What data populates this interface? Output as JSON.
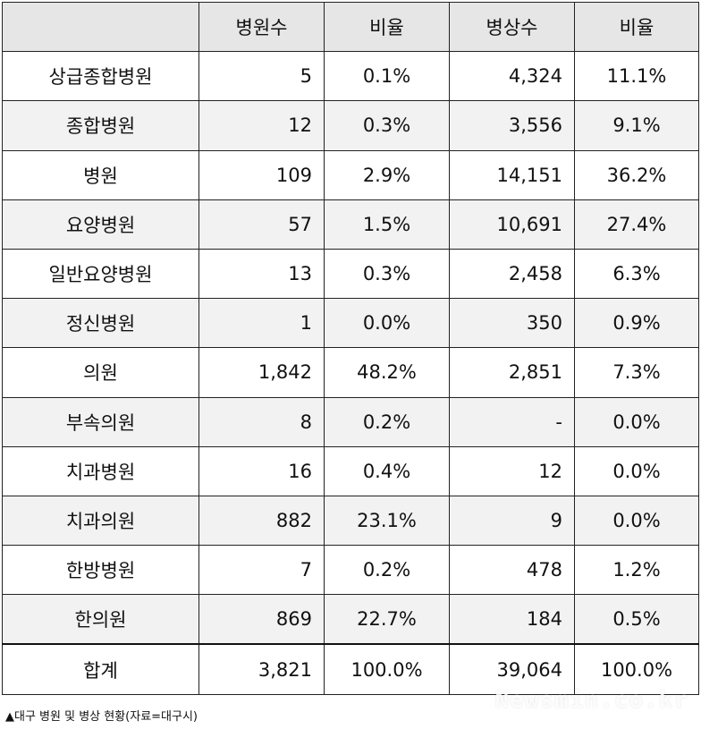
{
  "table": {
    "headers": [
      "",
      "병원수",
      "비율",
      "병상수",
      "비율"
    ],
    "rows": [
      [
        "상급종합병원",
        "5",
        "0.1%",
        "4,324",
        "11.1%"
      ],
      [
        "종합병원",
        "12",
        "0.3%",
        "3,556",
        "9.1%"
      ],
      [
        "병원",
        "109",
        "2.9%",
        "14,151",
        "36.2%"
      ],
      [
        "요양병원",
        "57",
        "1.5%",
        "10,691",
        "27.4%"
      ],
      [
        "일반요양병원",
        "13",
        "0.3%",
        "2,458",
        "6.3%"
      ],
      [
        "정신병원",
        "1",
        "0.0%",
        "350",
        "0.9%"
      ],
      [
        "의원",
        "1,842",
        "48.2%",
        "2,851",
        "7.3%"
      ],
      [
        "부속의원",
        "8",
        "0.2%",
        "-",
        "0.0%"
      ],
      [
        "치과병원",
        "16",
        "0.4%",
        "12",
        "0.0%"
      ],
      [
        "치과의원",
        "882",
        "23.1%",
        "9",
        "0.0%"
      ],
      [
        "한방병원",
        "7",
        "0.2%",
        "478",
        "1.2%"
      ],
      [
        "한의원",
        "869",
        "22.7%",
        "184",
        "0.5%"
      ],
      [
        "합계",
        "3,821",
        "100.0%",
        "39,064",
        "100.0%"
      ]
    ]
  },
  "caption": "▲대구 병원 및 병상 현황(자료=대구시)",
  "watermark": "Newsmin.co.kr"
}
